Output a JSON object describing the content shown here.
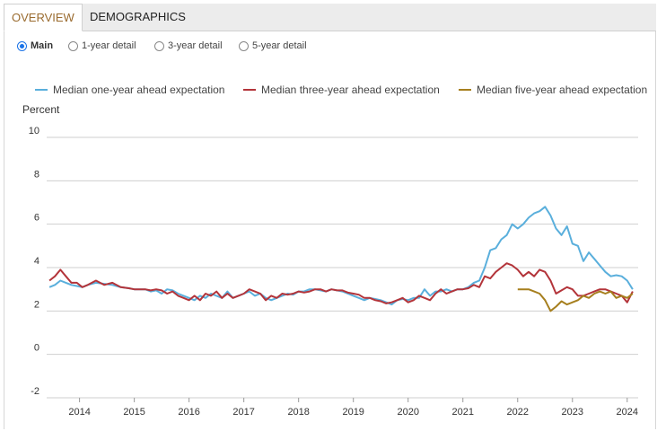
{
  "tabs": [
    {
      "label": "OVERVIEW",
      "active": true
    },
    {
      "label": "DEMOGRAPHICS",
      "active": false
    }
  ],
  "radios": [
    {
      "label": "Main",
      "selected": true
    },
    {
      "label": "1-year detail",
      "selected": false
    },
    {
      "label": "3-year detail",
      "selected": false
    },
    {
      "label": "5-year detail",
      "selected": false
    }
  ],
  "colors": {
    "one_year": "#5aafdc",
    "three_year": "#b3343a",
    "five_year": "#a67f1e",
    "grid": "#cfcfcf",
    "active_tab_text": "#9a6b2f"
  },
  "chart_data": {
    "type": "line",
    "ylabel": "Percent",
    "ylim": [
      -2,
      10
    ],
    "yticks": [
      "10",
      "8",
      "6",
      "4",
      "2",
      "0",
      "-2"
    ],
    "xlim": [
      2013.4,
      2024.2
    ],
    "xticks": [
      "2014",
      "2015",
      "2016",
      "2017",
      "2018",
      "2019",
      "2020",
      "2021",
      "2022",
      "2023",
      "2024"
    ],
    "grid": "horizontal",
    "legend": "top",
    "series": [
      {
        "name": "Median one-year ahead expectation",
        "x": [
          2013.45,
          2013.55,
          2013.65,
          2013.75,
          2013.85,
          2013.95,
          2014.05,
          2014.15,
          2014.3,
          2014.45,
          2014.6,
          2014.75,
          2014.9,
          2015.0,
          2015.1,
          2015.2,
          2015.3,
          2015.4,
          2015.5,
          2015.6,
          2015.7,
          2015.8,
          2015.9,
          2016.0,
          2016.1,
          2016.2,
          2016.3,
          2016.4,
          2016.5,
          2016.6,
          2016.7,
          2016.8,
          2016.9,
          2017.0,
          2017.1,
          2017.2,
          2017.3,
          2017.4,
          2017.5,
          2017.6,
          2017.7,
          2017.8,
          2017.9,
          2018.0,
          2018.1,
          2018.2,
          2018.3,
          2018.4,
          2018.5,
          2018.6,
          2018.7,
          2018.8,
          2018.9,
          2019.0,
          2019.1,
          2019.2,
          2019.3,
          2019.4,
          2019.5,
          2019.6,
          2019.7,
          2019.8,
          2019.9,
          2020.0,
          2020.1,
          2020.2,
          2020.3,
          2020.4,
          2020.5,
          2020.6,
          2020.7,
          2020.8,
          2020.9,
          2021.0,
          2021.1,
          2021.2,
          2021.3,
          2021.4,
          2021.5,
          2021.6,
          2021.7,
          2021.8,
          2021.9,
          2022.0,
          2022.1,
          2022.2,
          2022.3,
          2022.4,
          2022.5,
          2022.6,
          2022.7,
          2022.8,
          2022.9,
          2023.0,
          2023.1,
          2023.2,
          2023.3,
          2023.4,
          2023.5,
          2023.6,
          2023.7,
          2023.8,
          2023.9,
          2024.0,
          2024.1
        ],
        "values": [
          3.1,
          3.2,
          3.4,
          3.3,
          3.2,
          3.15,
          3.1,
          3.2,
          3.3,
          3.25,
          3.2,
          3.1,
          3.05,
          3.0,
          3.0,
          3.0,
          2.9,
          2.95,
          2.8,
          3.0,
          2.95,
          2.8,
          2.7,
          2.6,
          2.5,
          2.7,
          2.6,
          2.8,
          2.7,
          2.6,
          2.9,
          2.6,
          2.7,
          2.8,
          2.9,
          2.7,
          2.8,
          2.6,
          2.5,
          2.6,
          2.7,
          2.8,
          2.75,
          2.9,
          2.9,
          3.0,
          3.0,
          2.95,
          2.9,
          3.0,
          2.95,
          2.9,
          2.8,
          2.7,
          2.6,
          2.5,
          2.6,
          2.55,
          2.5,
          2.4,
          2.3,
          2.5,
          2.55,
          2.5,
          2.6,
          2.6,
          3.0,
          2.7,
          2.9,
          2.9,
          3.0,
          2.9,
          3.0,
          3.0,
          3.1,
          3.3,
          3.4,
          4.0,
          4.8,
          4.9,
          5.3,
          5.5,
          6.0,
          5.8,
          6.0,
          6.3,
          6.5,
          6.6,
          6.8,
          6.4,
          5.8,
          5.5,
          5.9,
          5.1,
          5.0,
          4.3,
          4.7,
          4.4,
          4.1,
          3.8,
          3.6,
          3.65,
          3.6,
          3.4,
          3.0
        ]
      },
      {
        "name": "Median three-year ahead expectation",
        "x": [
          2013.45,
          2013.55,
          2013.65,
          2013.75,
          2013.85,
          2013.95,
          2014.05,
          2014.15,
          2014.3,
          2014.45,
          2014.6,
          2014.75,
          2014.9,
          2015.0,
          2015.1,
          2015.2,
          2015.3,
          2015.4,
          2015.5,
          2015.6,
          2015.7,
          2015.8,
          2015.9,
          2016.0,
          2016.1,
          2016.2,
          2016.3,
          2016.4,
          2016.5,
          2016.6,
          2016.7,
          2016.8,
          2016.9,
          2017.0,
          2017.1,
          2017.2,
          2017.3,
          2017.4,
          2017.5,
          2017.6,
          2017.7,
          2017.8,
          2017.9,
          2018.0,
          2018.1,
          2018.2,
          2018.3,
          2018.4,
          2018.5,
          2018.6,
          2018.7,
          2018.8,
          2018.9,
          2019.0,
          2019.1,
          2019.2,
          2019.3,
          2019.4,
          2019.5,
          2019.6,
          2019.7,
          2019.8,
          2019.9,
          2020.0,
          2020.1,
          2020.2,
          2020.3,
          2020.4,
          2020.5,
          2020.6,
          2020.7,
          2020.8,
          2020.9,
          2021.0,
          2021.1,
          2021.2,
          2021.3,
          2021.4,
          2021.5,
          2021.6,
          2021.7,
          2021.8,
          2021.9,
          2022.0,
          2022.1,
          2022.2,
          2022.3,
          2022.4,
          2022.5,
          2022.6,
          2022.7,
          2022.8,
          2022.9,
          2023.0,
          2023.1,
          2023.2,
          2023.3,
          2023.4,
          2023.5,
          2023.6,
          2023.7,
          2023.8,
          2023.9,
          2024.0,
          2024.1
        ],
        "values": [
          3.4,
          3.6,
          3.9,
          3.6,
          3.3,
          3.3,
          3.1,
          3.2,
          3.4,
          3.2,
          3.3,
          3.1,
          3.05,
          3.0,
          3.0,
          3.0,
          2.95,
          3.0,
          2.95,
          2.8,
          2.9,
          2.7,
          2.6,
          2.5,
          2.7,
          2.5,
          2.8,
          2.7,
          2.9,
          2.6,
          2.8,
          2.6,
          2.7,
          2.8,
          3.0,
          2.9,
          2.8,
          2.5,
          2.7,
          2.6,
          2.8,
          2.75,
          2.8,
          2.9,
          2.85,
          2.9,
          3.0,
          3.0,
          2.9,
          3.0,
          2.95,
          2.95,
          2.85,
          2.8,
          2.75,
          2.6,
          2.6,
          2.5,
          2.45,
          2.35,
          2.4,
          2.5,
          2.6,
          2.4,
          2.5,
          2.7,
          2.6,
          2.5,
          2.8,
          3.0,
          2.8,
          2.9,
          3.0,
          3.0,
          3.05,
          3.2,
          3.1,
          3.6,
          3.5,
          3.8,
          4.0,
          4.2,
          4.1,
          3.9,
          3.6,
          3.8,
          3.6,
          3.9,
          3.8,
          3.4,
          2.8,
          2.95,
          3.1,
          3.0,
          2.7,
          2.7,
          2.8,
          2.9,
          3.0,
          3.0,
          2.9,
          2.8,
          2.7,
          2.4,
          2.9
        ]
      },
      {
        "name": "Median five-year ahead expectation",
        "x": [
          2022.0,
          2022.1,
          2022.2,
          2022.3,
          2022.4,
          2022.5,
          2022.6,
          2022.7,
          2022.8,
          2022.9,
          2023.0,
          2023.1,
          2023.2,
          2023.3,
          2023.4,
          2023.5,
          2023.6,
          2023.7,
          2023.8,
          2023.9,
          2024.0,
          2024.1
        ],
        "values": [
          3.0,
          3.0,
          3.0,
          2.9,
          2.8,
          2.5,
          2.0,
          2.2,
          2.45,
          2.3,
          2.4,
          2.5,
          2.7,
          2.6,
          2.8,
          2.9,
          2.8,
          2.9,
          2.6,
          2.7,
          2.6,
          2.8
        ]
      }
    ]
  }
}
